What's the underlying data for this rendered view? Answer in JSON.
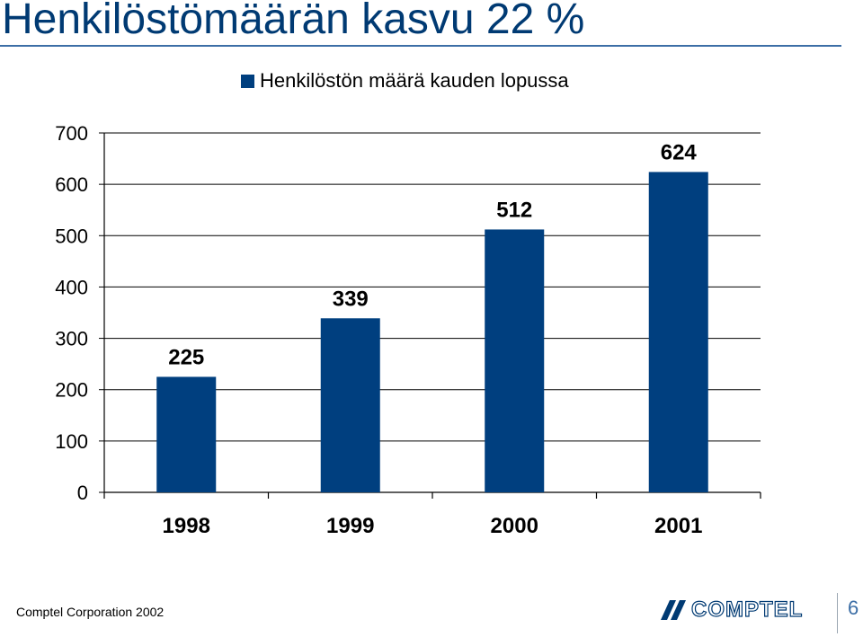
{
  "slide": {
    "title": "Henkilöstömäärän kasvu 22 %",
    "footer": "Comptel Corporation 2002",
    "logo_text": "COMPTEL",
    "page_number": "6"
  },
  "colors": {
    "title": "#003a73",
    "bar": "#003f7f",
    "accent": "#3c6ea6"
  },
  "chart_data": {
    "type": "bar",
    "categories": [
      "1998",
      "1999",
      "2000",
      "2001"
    ],
    "series": [
      {
        "name": "Henkilöstön määrä kauden lopussa",
        "values": [
          225,
          339,
          512,
          624
        ]
      }
    ],
    "ylim": [
      0,
      700
    ],
    "yticks": [
      0,
      100,
      200,
      300,
      400,
      500,
      600,
      700
    ],
    "ytick_labels": [
      "0",
      "100",
      "200",
      "300",
      "400",
      "500",
      "600",
      "700"
    ],
    "data_labels": [
      "225",
      "339",
      "512",
      "624"
    ],
    "grid": true,
    "legend_position": "top",
    "xlabel": "",
    "ylabel": ""
  }
}
